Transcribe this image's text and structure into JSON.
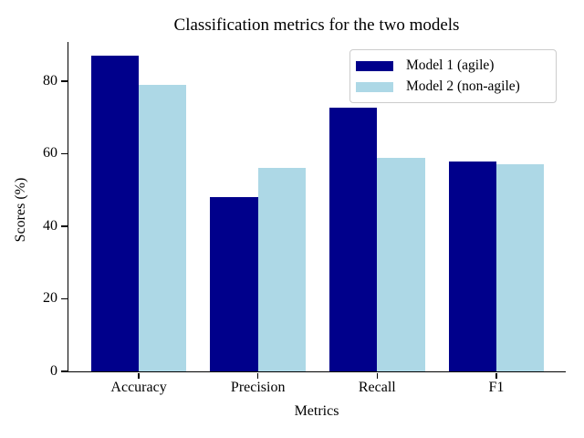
{
  "chart_data": {
    "type": "bar",
    "title": "Classification metrics for the two models",
    "xlabel": "Metrics",
    "ylabel": "Scores (%)",
    "categories": [
      "Accuracy",
      "Precision",
      "Recall",
      "F1"
    ],
    "series": [
      {
        "name": "Model 1 (agile)",
        "color": "#00008B",
        "values": [
          87.0,
          48.0,
          72.6,
          57.7
        ]
      },
      {
        "name": "Model 2 (non-agile)",
        "color": "#ADD8E6",
        "values": [
          79.0,
          56.0,
          58.8,
          57.1
        ]
      }
    ],
    "yticks": [
      0,
      20,
      40,
      60,
      80
    ],
    "ylim": [
      0,
      91
    ],
    "xlim": [
      -0.59,
      3.59
    ],
    "bar_width_units": 0.4,
    "grid": false,
    "legend_position": "upper right",
    "axis_color": "#000000",
    "background_color": "#ffffff",
    "tick_label_color": "#000000"
  }
}
